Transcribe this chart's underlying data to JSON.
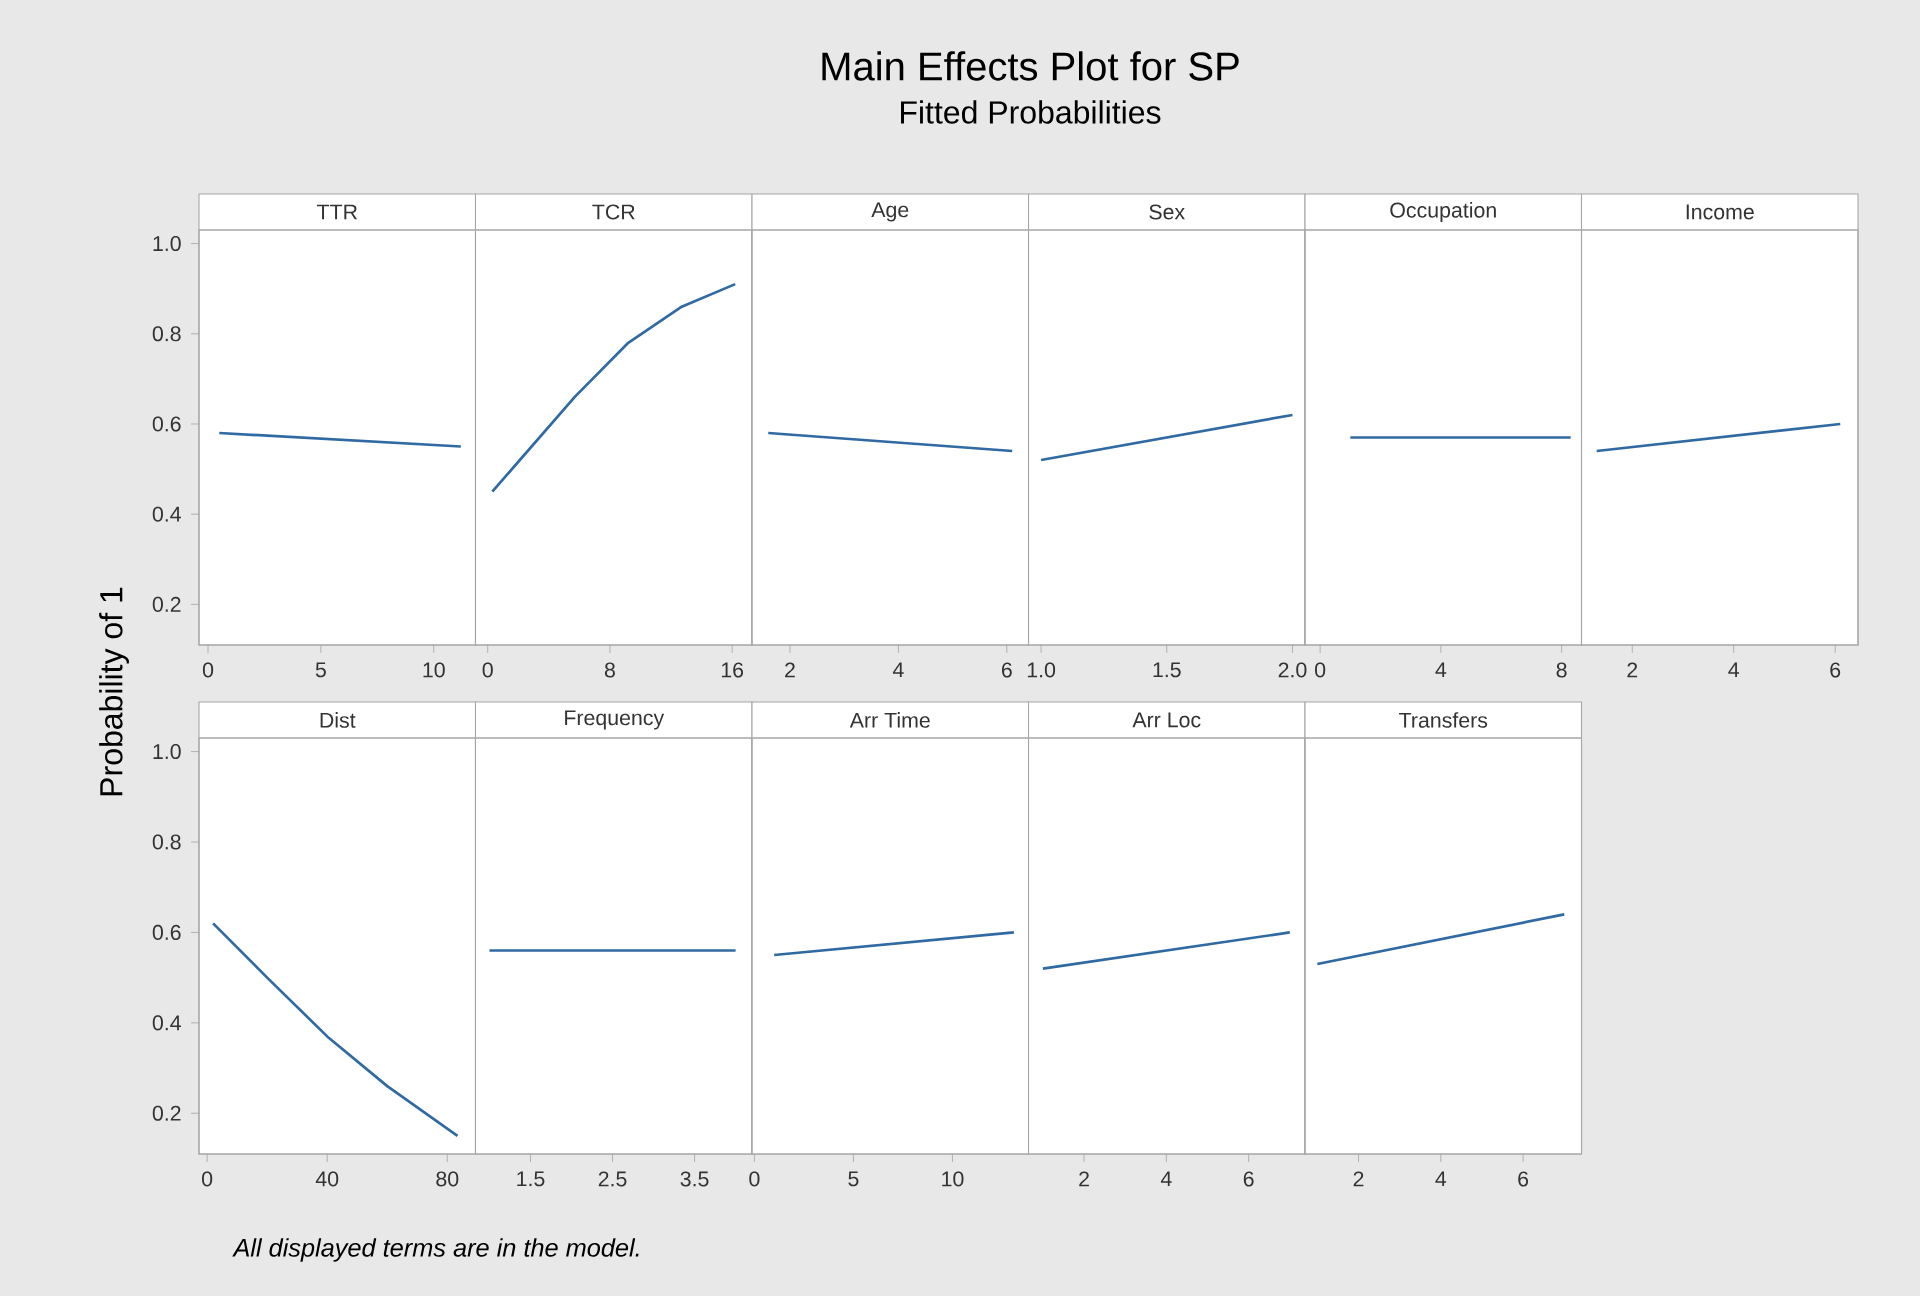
{
  "chart_data": [
    {
      "type": "other",
      "title": "Main Effects Plot for SP",
      "subtitle": "Fitted Probabilities",
      "ylabel": "Probability of 1",
      "annotations": [
        "All displayed terms are in the model."
      ]
    },
    {
      "type": "line",
      "title": "TTR",
      "x": [
        0.5,
        11.2
      ],
      "values": [
        0.58,
        0.55
      ],
      "color": "#2f6aa3",
      "xlim": [
        -0.4,
        11.85
      ],
      "xticks": [
        0,
        5,
        10
      ],
      "ylim": [
        0.11,
        1.03
      ],
      "yticks": [
        0.2,
        0.4,
        0.6,
        0.8,
        {
          "value": 1,
          "label": "1.0"
        }
      ]
    },
    {
      "type": "line",
      "title": "TCR",
      "x": [
        0.3,
        5.7,
        9.2,
        12.7,
        16.2
      ],
      "values": [
        0.45,
        0.66,
        0.78,
        0.86,
        0.91
      ],
      "color": "#2f6aa3",
      "xlim": [
        -0.8,
        17.3
      ],
      "xticks": [
        0,
        8,
        16
      ],
      "ylim": [
        0.11,
        1.03
      ],
      "tick_labels": "x"
    },
    {
      "type": "line",
      "title": "Age",
      "x": [
        1.6,
        6.1
      ],
      "values": [
        0.58,
        0.54
      ],
      "color": "#2f6aa3",
      "xlim": [
        1.3,
        6.4
      ],
      "xticks": [
        2,
        4,
        6
      ],
      "ylim": [
        0.11,
        1.03
      ],
      "tick_labels": "x"
    },
    {
      "type": "line",
      "title": "Sex",
      "x": [
        1,
        2
      ],
      "values": [
        0.52,
        0.62
      ],
      "color": "#2f6aa3",
      "xlim": [
        0.95,
        2.05
      ],
      "xticks": [
        {
          "value": 1,
          "label": "1.0"
        },
        1.5,
        {
          "value": 2,
          "label": "2.0"
        }
      ],
      "ylim": [
        0.11,
        1.03
      ],
      "tick_labels": "x"
    },
    {
      "type": "line",
      "title": "Occupation",
      "x": [
        1,
        8.3
      ],
      "values": [
        0.57,
        0.57
      ],
      "color": "#2f6aa3",
      "xlim": [
        -0.5,
        8.66
      ],
      "xticks": [
        0,
        4,
        8
      ],
      "ylim": [
        0.11,
        1.03
      ],
      "tick_labels": "x"
    },
    {
      "type": "line",
      "title": "Income",
      "x": [
        1.3,
        6.1
      ],
      "values": [
        0.54,
        0.6
      ],
      "color": "#2f6aa3",
      "xlim": [
        1.0,
        6.45
      ],
      "xticks": [
        2,
        4,
        6
      ],
      "ylim": [
        0.11,
        1.03
      ],
      "tick_labels": "x"
    },
    {
      "type": "line",
      "title": "Dist",
      "x": [
        2,
        20,
        40,
        60,
        83.4
      ],
      "values": [
        0.62,
        0.5,
        0.37,
        0.26,
        0.15
      ],
      "color": "#2f6aa3",
      "xlim": [
        -2.7,
        89.4
      ],
      "xticks": [
        0,
        40,
        80
      ],
      "ylim": [
        0.11,
        1.03
      ],
      "yticks": [
        0.2,
        0.4,
        0.6,
        0.8,
        {
          "value": 1,
          "label": "1.0"
        }
      ]
    },
    {
      "type": "line",
      "title": "Frequency",
      "x": [
        1,
        4
      ],
      "values": [
        0.56,
        0.56
      ],
      "color": "#2f6aa3",
      "xlim": [
        0.83,
        4.2
      ],
      "xticks": [
        1.5,
        2.5,
        3.5
      ],
      "ylim": [
        0.11,
        1.03
      ],
      "tick_labels": "x"
    },
    {
      "type": "line",
      "title": "Arr Time",
      "x": [
        1,
        13.1
      ],
      "values": [
        0.55,
        0.6
      ],
      "color": "#2f6aa3",
      "xlim": [
        -0.12,
        13.84
      ],
      "xticks": [
        0,
        5,
        10
      ],
      "ylim": [
        0.11,
        1.03
      ],
      "tick_labels": "x"
    },
    {
      "type": "line",
      "title": "Arr Loc",
      "x": [
        1,
        7
      ],
      "values": [
        0.52,
        0.6
      ],
      "color": "#2f6aa3",
      "xlim": [
        0.65,
        7.37
      ],
      "xticks": [
        2,
        4,
        6
      ],
      "ylim": [
        0.11,
        1.03
      ],
      "tick_labels": "x"
    },
    {
      "type": "line",
      "title": "Transfers",
      "x": [
        1,
        7
      ],
      "values": [
        0.53,
        0.64
      ],
      "color": "#2f6aa3",
      "xlim": [
        0.7,
        7.42
      ],
      "xticks": [
        2,
        4,
        6
      ],
      "ylim": [
        0.11,
        1.03
      ],
      "tick_labels": "x"
    }
  ]
}
